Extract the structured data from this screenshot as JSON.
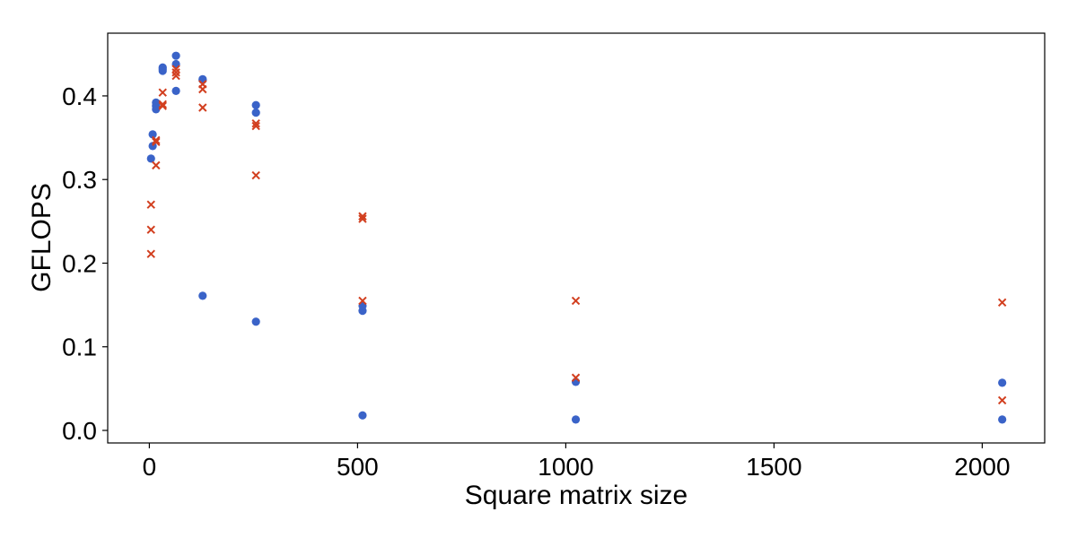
{
  "chart_data": {
    "type": "scatter",
    "title": "",
    "xlabel": "Square matrix size",
    "ylabel": "GFLOPS",
    "xlim": [
      -100,
      2150
    ],
    "ylim": [
      -0.015,
      0.475
    ],
    "xticks": [
      0,
      500,
      1000,
      1500,
      2000
    ],
    "yticks": [
      0.0,
      0.1,
      0.2,
      0.3,
      0.4
    ],
    "xtick_labels": [
      "0",
      "500",
      "1000",
      "1500",
      "2000"
    ],
    "ytick_labels": [
      "0.0",
      "0.1",
      "0.2",
      "0.3",
      "0.4"
    ],
    "grid": false,
    "legend": "none",
    "series": [
      {
        "marker": "circle",
        "color": "#3a63c8",
        "points": [
          {
            "x": 4,
            "y": 0.325
          },
          {
            "x": 8,
            "y": 0.34
          },
          {
            "x": 8,
            "y": 0.354
          },
          {
            "x": 16,
            "y": 0.384
          },
          {
            "x": 16,
            "y": 0.388
          },
          {
            "x": 16,
            "y": 0.392
          },
          {
            "x": 32,
            "y": 0.43
          },
          {
            "x": 32,
            "y": 0.432
          },
          {
            "x": 32,
            "y": 0.434
          },
          {
            "x": 64,
            "y": 0.406
          },
          {
            "x": 64,
            "y": 0.438
          },
          {
            "x": 64,
            "y": 0.448
          },
          {
            "x": 128,
            "y": 0.161
          },
          {
            "x": 128,
            "y": 0.419
          },
          {
            "x": 128,
            "y": 0.42
          },
          {
            "x": 256,
            "y": 0.13
          },
          {
            "x": 256,
            "y": 0.38
          },
          {
            "x": 256,
            "y": 0.389
          },
          {
            "x": 512,
            "y": 0.018
          },
          {
            "x": 512,
            "y": 0.143
          },
          {
            "x": 512,
            "y": 0.149
          },
          {
            "x": 1024,
            "y": 0.013
          },
          {
            "x": 1024,
            "y": 0.058
          },
          {
            "x": 2048,
            "y": 0.013
          },
          {
            "x": 2048,
            "y": 0.057
          }
        ]
      },
      {
        "marker": "x",
        "color": "#d23f1f",
        "points": [
          {
            "x": 4,
            "y": 0.211
          },
          {
            "x": 4,
            "y": 0.24
          },
          {
            "x": 4,
            "y": 0.27
          },
          {
            "x": 16,
            "y": 0.317
          },
          {
            "x": 16,
            "y": 0.345
          },
          {
            "x": 16,
            "y": 0.347
          },
          {
            "x": 32,
            "y": 0.388
          },
          {
            "x": 32,
            "y": 0.39
          },
          {
            "x": 32,
            "y": 0.404
          },
          {
            "x": 64,
            "y": 0.424
          },
          {
            "x": 64,
            "y": 0.428
          },
          {
            "x": 64,
            "y": 0.432
          },
          {
            "x": 128,
            "y": 0.386
          },
          {
            "x": 128,
            "y": 0.408
          },
          {
            "x": 128,
            "y": 0.414
          },
          {
            "x": 256,
            "y": 0.305
          },
          {
            "x": 256,
            "y": 0.364
          },
          {
            "x": 256,
            "y": 0.367
          },
          {
            "x": 512,
            "y": 0.155
          },
          {
            "x": 512,
            "y": 0.253
          },
          {
            "x": 512,
            "y": 0.256
          },
          {
            "x": 1024,
            "y": 0.063
          },
          {
            "x": 1024,
            "y": 0.155
          },
          {
            "x": 2048,
            "y": 0.036
          },
          {
            "x": 2048,
            "y": 0.153
          }
        ]
      }
    ]
  }
}
